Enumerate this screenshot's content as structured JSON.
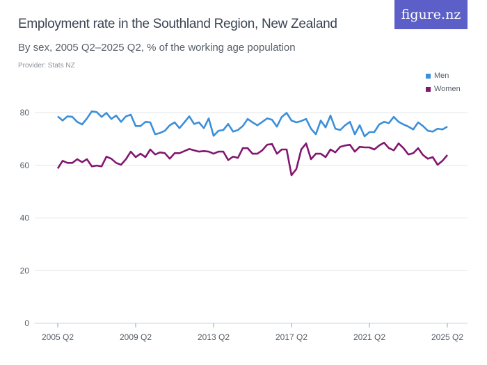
{
  "header": {
    "title": "Employment rate in the Southland Region, New Zealand",
    "subtitle": "By sex, 2005 Q2–2025 Q2, % of the working age population",
    "provider": "Provider: Stats NZ",
    "logo": "figure.nz"
  },
  "chart_data": {
    "type": "line",
    "title": "Employment rate in the Southland Region, New Zealand",
    "subtitle": "By sex, 2005 Q2–2025 Q2, % of the working age population",
    "x_start": "2005 Q2",
    "x_end": "2025 Q2",
    "x_frequency": "quarterly",
    "x_ticks": [
      "2005 Q2",
      "2009 Q2",
      "2013 Q2",
      "2017 Q2",
      "2021 Q2",
      "2025 Q2"
    ],
    "y_ticks": [
      0,
      20,
      40,
      60,
      80
    ],
    "ylim": [
      0,
      85
    ],
    "grid": true,
    "legend": "top-right",
    "series": [
      {
        "name": "Men",
        "color": "#3b8fd9",
        "values": [
          78.6,
          77.0,
          78.6,
          78.4,
          76.5,
          75.5,
          77.8,
          80.5,
          80.2,
          78.4,
          79.9,
          77.6,
          78.9,
          76.5,
          78.6,
          79.2,
          74.9,
          74.9,
          76.5,
          76.3,
          71.8,
          72.3,
          73.1,
          75.2,
          76.3,
          74.1,
          76.3,
          78.6,
          75.7,
          76.3,
          74.1,
          77.8,
          71.2,
          73.1,
          73.4,
          75.7,
          72.8,
          73.4,
          74.9,
          77.6,
          76.3,
          75.2,
          76.5,
          77.8,
          77.3,
          74.7,
          78.4,
          79.9,
          77.0,
          76.3,
          76.8,
          77.6,
          73.9,
          71.8,
          77.0,
          74.4,
          78.9,
          73.9,
          73.4,
          75.2,
          76.5,
          71.8,
          75.2,
          71.0,
          72.6,
          72.6,
          75.5,
          76.5,
          76.0,
          78.4,
          76.5,
          75.5,
          74.7,
          73.6,
          76.3,
          74.9,
          73.1,
          72.8,
          73.9,
          73.6,
          74.7
        ]
      },
      {
        "name": "Women",
        "color": "#82176f",
        "values": [
          58.8,
          61.7,
          60.9,
          60.9,
          62.3,
          61.2,
          62.3,
          59.6,
          59.9,
          59.6,
          63.3,
          62.5,
          60.9,
          60.2,
          62.3,
          65.2,
          63.1,
          64.4,
          63.1,
          66.0,
          64.1,
          64.9,
          64.6,
          62.5,
          64.6,
          64.6,
          65.4,
          66.2,
          65.7,
          65.2,
          65.4,
          65.2,
          64.4,
          65.2,
          65.2,
          62.0,
          63.3,
          62.8,
          66.5,
          66.5,
          64.4,
          64.4,
          65.7,
          67.8,
          68.1,
          64.4,
          66.0,
          66.0,
          56.2,
          58.6,
          66.0,
          68.3,
          62.3,
          64.4,
          64.4,
          63.1,
          66.0,
          64.9,
          67.0,
          67.5,
          67.8,
          65.2,
          67.0,
          66.8,
          66.8,
          66.0,
          67.5,
          68.6,
          66.5,
          65.7,
          68.3,
          66.5,
          64.1,
          64.6,
          66.5,
          63.9,
          62.5,
          63.1,
          60.2,
          61.7,
          63.9
        ]
      }
    ]
  }
}
